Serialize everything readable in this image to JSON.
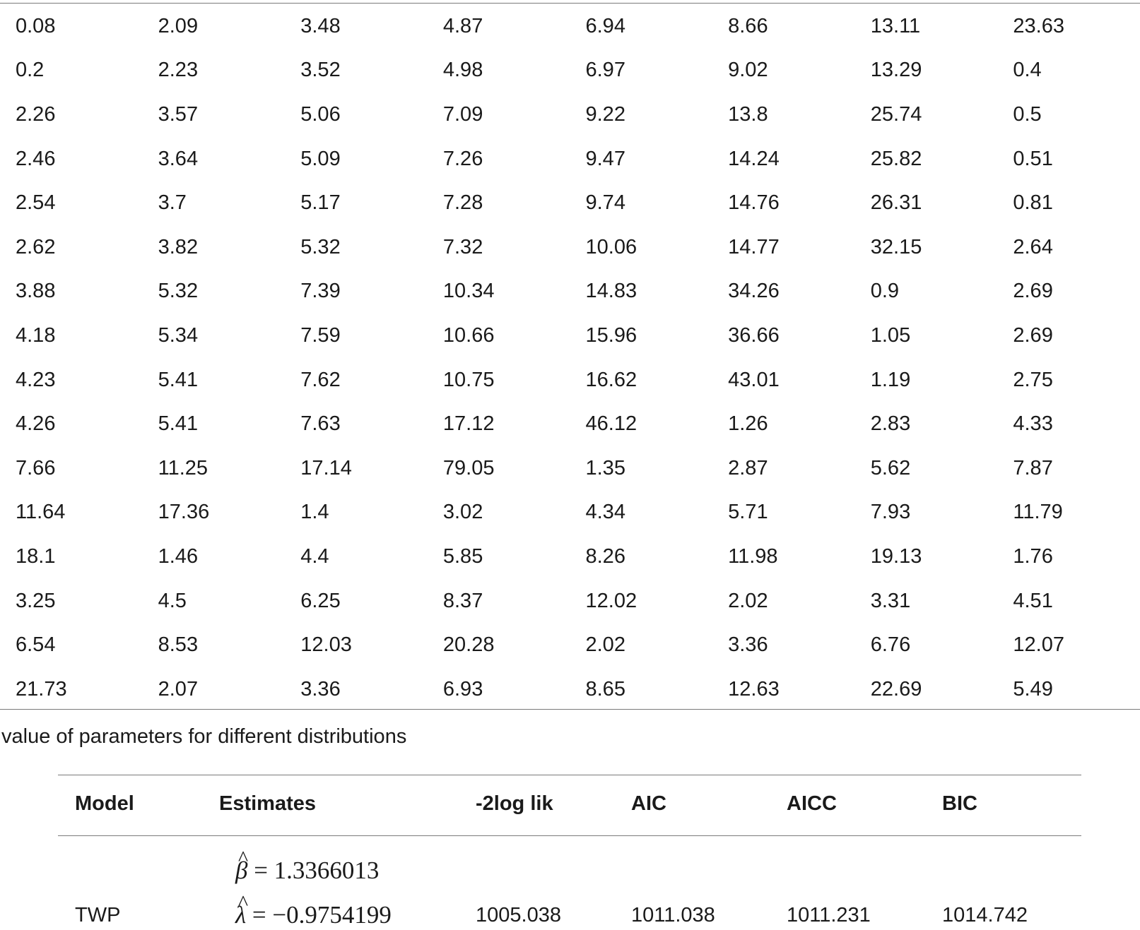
{
  "data_table": {
    "rows": [
      [
        "0.08",
        "2.09",
        "3.48",
        "4.87",
        "6.94",
        "8.66",
        "13.11",
        "23.63"
      ],
      [
        "0.2",
        "2.23",
        "3.52",
        "4.98",
        "6.97",
        "9.02",
        "13.29",
        "0.4"
      ],
      [
        "2.26",
        "3.57",
        "5.06",
        "7.09",
        "9.22",
        "13.8",
        "25.74",
        "0.5"
      ],
      [
        "2.46",
        "3.64",
        "5.09",
        "7.26",
        "9.47",
        "14.24",
        "25.82",
        "0.51"
      ],
      [
        "2.54",
        "3.7",
        "5.17",
        "7.28",
        "9.74",
        "14.76",
        "26.31",
        "0.81"
      ],
      [
        "2.62",
        "3.82",
        "5.32",
        "7.32",
        "10.06",
        "14.77",
        "32.15",
        "2.64"
      ],
      [
        "3.88",
        "5.32",
        "7.39",
        "10.34",
        "14.83",
        "34.26",
        "0.9",
        "2.69"
      ],
      [
        "4.18",
        "5.34",
        "7.59",
        "10.66",
        "15.96",
        "36.66",
        "1.05",
        "2.69"
      ],
      [
        "4.23",
        "5.41",
        "7.62",
        "10.75",
        "16.62",
        "43.01",
        "1.19",
        "2.75"
      ],
      [
        "4.26",
        "5.41",
        "7.63",
        "17.12",
        "46.12",
        "1.26",
        "2.83",
        "4.33"
      ],
      [
        "7.66",
        "11.25",
        "17.14",
        "79.05",
        "1.35",
        "2.87",
        "5.62",
        "7.87"
      ],
      [
        "11.64",
        "17.36",
        "1.4",
        "3.02",
        "4.34",
        "5.71",
        "7.93",
        "11.79"
      ],
      [
        "18.1",
        "1.46",
        "4.4",
        "5.85",
        "8.26",
        "11.98",
        "19.13",
        "1.76"
      ],
      [
        "3.25",
        "4.5",
        "6.25",
        "8.37",
        "12.02",
        "2.02",
        "3.31",
        "4.51"
      ],
      [
        "6.54",
        "8.53",
        "12.03",
        "20.28",
        "2.02",
        "3.36",
        "6.76",
        "12.07"
      ],
      [
        "21.73",
        "2.07",
        "3.36",
        "6.93",
        "8.65",
        "12.63",
        "22.69",
        "5.49"
      ]
    ]
  },
  "estimates_table": {
    "caption": "value of parameters for different distributions",
    "headers": {
      "model": "Model",
      "estimates": "Estimates",
      "neg2loglik": "-2log lik",
      "aic": "AIC",
      "aicc": "AICC",
      "bic": "BIC"
    },
    "row": {
      "model": "TWP",
      "beta_symbol": "β",
      "beta_value": "= 1.3366013",
      "lambda_symbol": "λ",
      "lambda_value": "= −0.9754199",
      "neg2loglik": "1005.038",
      "aic": "1011.038",
      "aicc": "1011.231",
      "bic": "1014.742"
    }
  }
}
